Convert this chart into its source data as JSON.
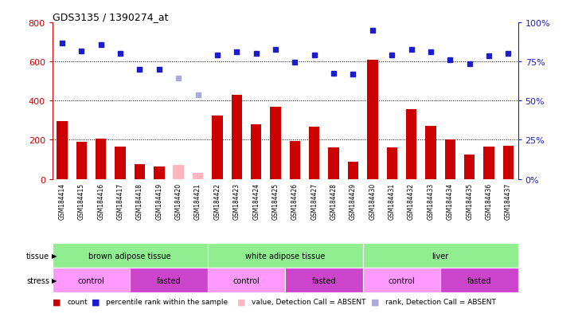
{
  "title": "GDS3135 / 1390274_at",
  "samples": [
    "GSM184414",
    "GSM184415",
    "GSM184416",
    "GSM184417",
    "GSM184418",
    "GSM184419",
    "GSM184420",
    "GSM184421",
    "GSM184422",
    "GSM184423",
    "GSM184424",
    "GSM184425",
    "GSM184426",
    "GSM184427",
    "GSM184428",
    "GSM184429",
    "GSM184430",
    "GSM184431",
    "GSM184432",
    "GSM184433",
    "GSM184434",
    "GSM184435",
    "GSM184436",
    "GSM184437"
  ],
  "count_values": [
    295,
    190,
    205,
    165,
    75,
    65,
    70,
    30,
    325,
    430,
    280,
    370,
    195,
    265,
    160,
    88,
    610,
    160,
    355,
    270,
    200,
    125,
    165,
    170
  ],
  "count_absent": [
    false,
    false,
    false,
    false,
    false,
    false,
    true,
    true,
    false,
    false,
    false,
    false,
    false,
    false,
    false,
    false,
    false,
    false,
    false,
    false,
    false,
    false,
    false,
    false
  ],
  "percentile_values": [
    695,
    655,
    685,
    640,
    560,
    558,
    515,
    430,
    635,
    650,
    640,
    660,
    595,
    635,
    540,
    535,
    760,
    635,
    660,
    650,
    610,
    590,
    630,
    640
  ],
  "percentile_absent": [
    false,
    false,
    false,
    false,
    false,
    false,
    true,
    true,
    false,
    false,
    false,
    false,
    false,
    false,
    false,
    false,
    false,
    false,
    false,
    false,
    false,
    false,
    false,
    false
  ],
  "ylim_left": [
    0,
    800
  ],
  "yticks_left": [
    0,
    200,
    400,
    600,
    800
  ],
  "ytick_labels_left": [
    "0",
    "200",
    "400",
    "600",
    "800"
  ],
  "ytick_labels_right": [
    "0%",
    "25%",
    "50%",
    "75%",
    "100%"
  ],
  "yticks_right_scaled": [
    0,
    200,
    400,
    600,
    800
  ],
  "grid_values": [
    200,
    400,
    600
  ],
  "tissue_groups": [
    {
      "label": "brown adipose tissue",
      "start": 0,
      "end": 7,
      "color": "#90EE90"
    },
    {
      "label": "white adipose tissue",
      "start": 8,
      "end": 15,
      "color": "#90EE90"
    },
    {
      "label": "liver",
      "start": 16,
      "end": 23,
      "color": "#90EE90"
    }
  ],
  "stress_groups": [
    {
      "label": "control",
      "start": 0,
      "end": 3,
      "color": "#FF99FF"
    },
    {
      "label": "fasted",
      "start": 4,
      "end": 7,
      "color": "#CC44CC"
    },
    {
      "label": "control",
      "start": 8,
      "end": 11,
      "color": "#FF99FF"
    },
    {
      "label": "fasted",
      "start": 12,
      "end": 15,
      "color": "#CC44CC"
    },
    {
      "label": "control",
      "start": 16,
      "end": 19,
      "color": "#FF99FF"
    },
    {
      "label": "fasted",
      "start": 20,
      "end": 23,
      "color": "#CC44CC"
    }
  ],
  "bar_color_normal": "#CC0000",
  "bar_color_absent": "#FFB6C1",
  "dot_color_normal": "#1C1CCC",
  "dot_color_absent": "#AAAADD",
  "axis_color_left": "#CC0000",
  "axis_color_right": "#1C1CCC",
  "bar_width": 0.55,
  "bg_color": "#FFFFFF",
  "xlabel_area_color": "#CCCCCC",
  "legend_items": [
    {
      "color": "#CC0000",
      "label": "count"
    },
    {
      "color": "#1C1CCC",
      "label": "percentile rank within the sample"
    },
    {
      "color": "#FFB6C1",
      "label": "value, Detection Call = ABSENT"
    },
    {
      "color": "#AAAADD",
      "label": "rank, Detection Call = ABSENT"
    }
  ]
}
